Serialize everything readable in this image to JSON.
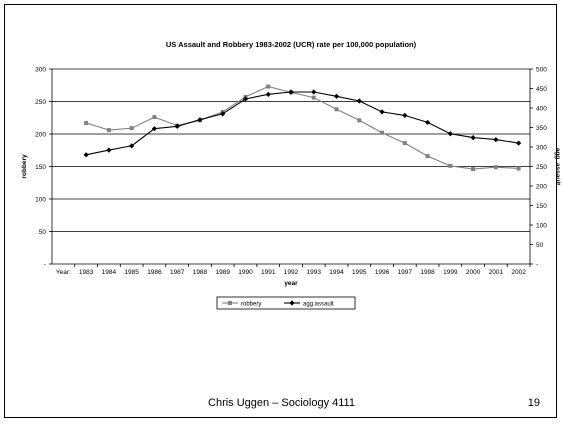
{
  "footer": {
    "author": "Chris Uggen – Sociology 4111",
    "page": "19"
  },
  "colors": {
    "robbery": "#808080",
    "assault": "#000000",
    "grid": "#000000"
  },
  "chart_data": {
    "type": "line",
    "title": "US Assault and Robbery 1983-2002 (UCR) rate per 100,000 population)",
    "xlabel": "year",
    "ylabel": "robbery",
    "y2label": "agg. assault",
    "x_prefix_label": "Year:",
    "categories": [
      "1983",
      "1984",
      "1985",
      "1986",
      "1987",
      "1988",
      "1989",
      "1990",
      "1991",
      "1992",
      "1993",
      "1994",
      "1995",
      "1996",
      "1997",
      "1998",
      "1999",
      "2000",
      "2001",
      "2002"
    ],
    "ylim": [
      0,
      300
    ],
    "yticks": [
      0,
      50,
      100,
      150,
      200,
      250,
      300
    ],
    "ytick_labels": [
      "-",
      "50",
      "100",
      "150",
      "200",
      "250",
      "300"
    ],
    "y2lim": [
      0,
      500
    ],
    "y2ticks": [
      0,
      50,
      100,
      150,
      200,
      250,
      300,
      350,
      400,
      450,
      500
    ],
    "y2tick_labels": [
      "-",
      "50",
      "100",
      "150",
      "200",
      "250",
      "300",
      "350",
      "400",
      "450",
      "500"
    ],
    "grid": true,
    "legend_position": "bottom",
    "series": [
      {
        "name": "robbery",
        "axis": "left",
        "marker": "square",
        "values": [
          217,
          206,
          209,
          226,
          213,
          221,
          234,
          257,
          273,
          264,
          256,
          238,
          221,
          202,
          186,
          166,
          151,
          146,
          149,
          147
        ]
      },
      {
        "name": "agg.assault",
        "axis": "right",
        "marker": "diamond",
        "values": [
          280,
          292,
          303,
          347,
          353,
          370,
          385,
          423,
          435,
          441,
          441,
          430,
          418,
          390,
          381,
          363,
          334,
          324,
          319,
          310
        ]
      }
    ]
  }
}
